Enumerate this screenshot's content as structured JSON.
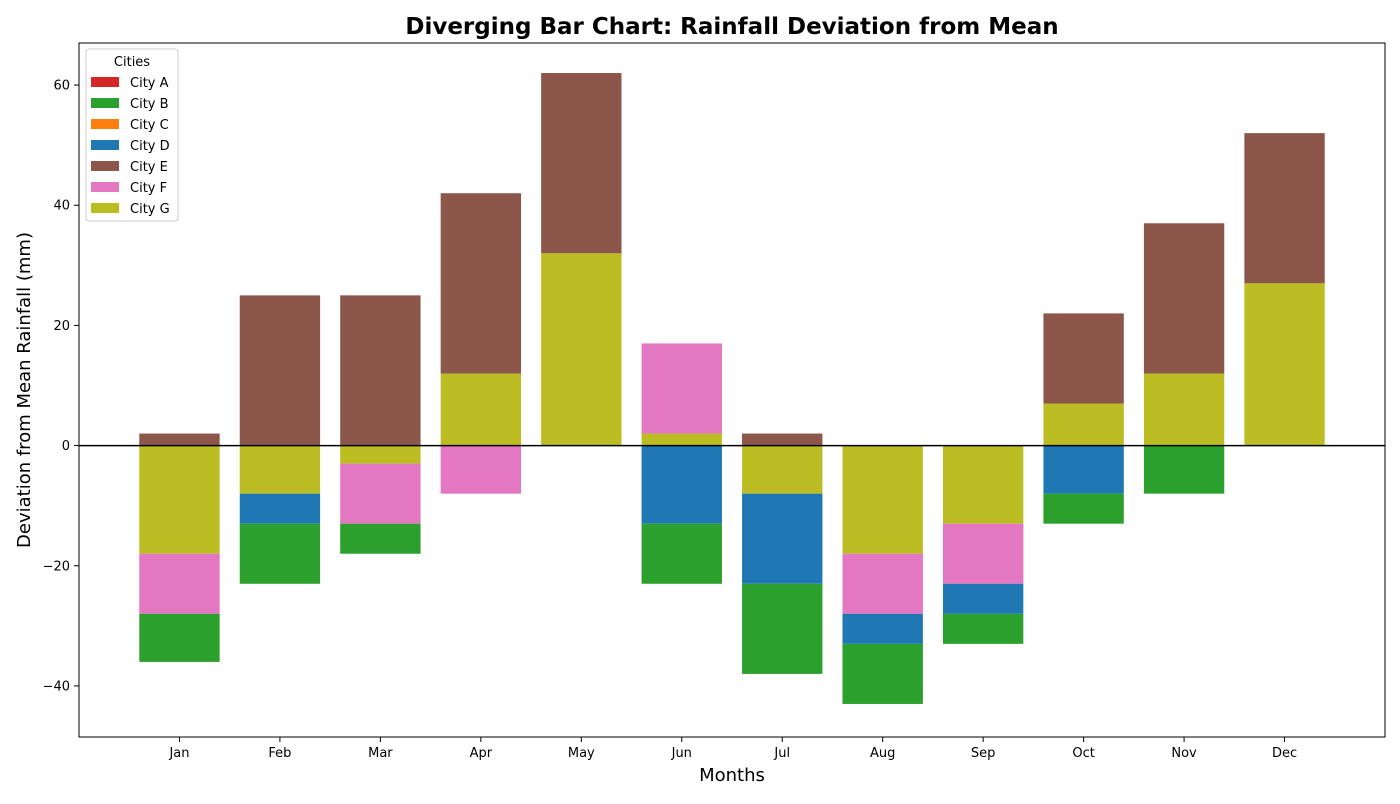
{
  "chart_data": {
    "type": "bar",
    "title": "Diverging Bar Chart: Rainfall Deviation from Mean",
    "xlabel": "Months",
    "ylabel": "Deviation from Mean Rainfall (mm)",
    "ylim": [
      -48.5,
      67
    ],
    "yticks": [
      -40,
      -20,
      0,
      20,
      40,
      60
    ],
    "ytick_labels": [
      "−40",
      "−20",
      "0",
      "20",
      "40",
      "60"
    ],
    "categories": [
      "Jan",
      "Feb",
      "Mar",
      "Apr",
      "May",
      "Jun",
      "Jul",
      "Aug",
      "Sep",
      "Oct",
      "Nov",
      "Dec"
    ],
    "legend": {
      "title": "Cities",
      "placement": "upper-left"
    },
    "grid": false,
    "stacking": "diverging (positive stacked upward from 0, negative stacked downward from 0)",
    "series": [
      {
        "name": "City A",
        "color": "#d62728",
        "values": [
          0,
          0,
          0,
          0,
          0,
          0,
          0,
          0,
          0,
          0,
          0,
          0
        ]
      },
      {
        "name": "City B",
        "color": "#2ca02c",
        "values": [
          -8,
          -10,
          -5,
          0,
          0,
          -10,
          -15,
          -10,
          -5,
          -5,
          -8,
          0
        ]
      },
      {
        "name": "City C",
        "color": "#ff7f0e",
        "values": [
          0,
          0,
          0,
          0,
          0,
          0,
          0,
          0,
          0,
          0,
          0,
          0
        ]
      },
      {
        "name": "City D",
        "color": "#1f77b4",
        "values": [
          0,
          -5,
          0,
          0,
          0,
          -13,
          -15,
          -5,
          -5,
          -8,
          0,
          0
        ]
      },
      {
        "name": "City E",
        "color": "#8c564b",
        "values": [
          2,
          25,
          25,
          30,
          30,
          0,
          2,
          0,
          0,
          15,
          25,
          25
        ]
      },
      {
        "name": "City F",
        "color": "#e377c2",
        "values": [
          -10,
          0,
          -10,
          -8,
          0,
          15,
          0,
          -10,
          -10,
          0,
          0,
          0
        ]
      },
      {
        "name": "City G",
        "color": "#bcbd22",
        "values": [
          -18,
          -8,
          -3,
          12,
          32,
          2,
          -8,
          -18,
          -13,
          7,
          12,
          27
        ]
      }
    ],
    "stack_order_outward": [
      "City G",
      "City F",
      "City E",
      "City D",
      "City C",
      "City B",
      "City A"
    ]
  }
}
